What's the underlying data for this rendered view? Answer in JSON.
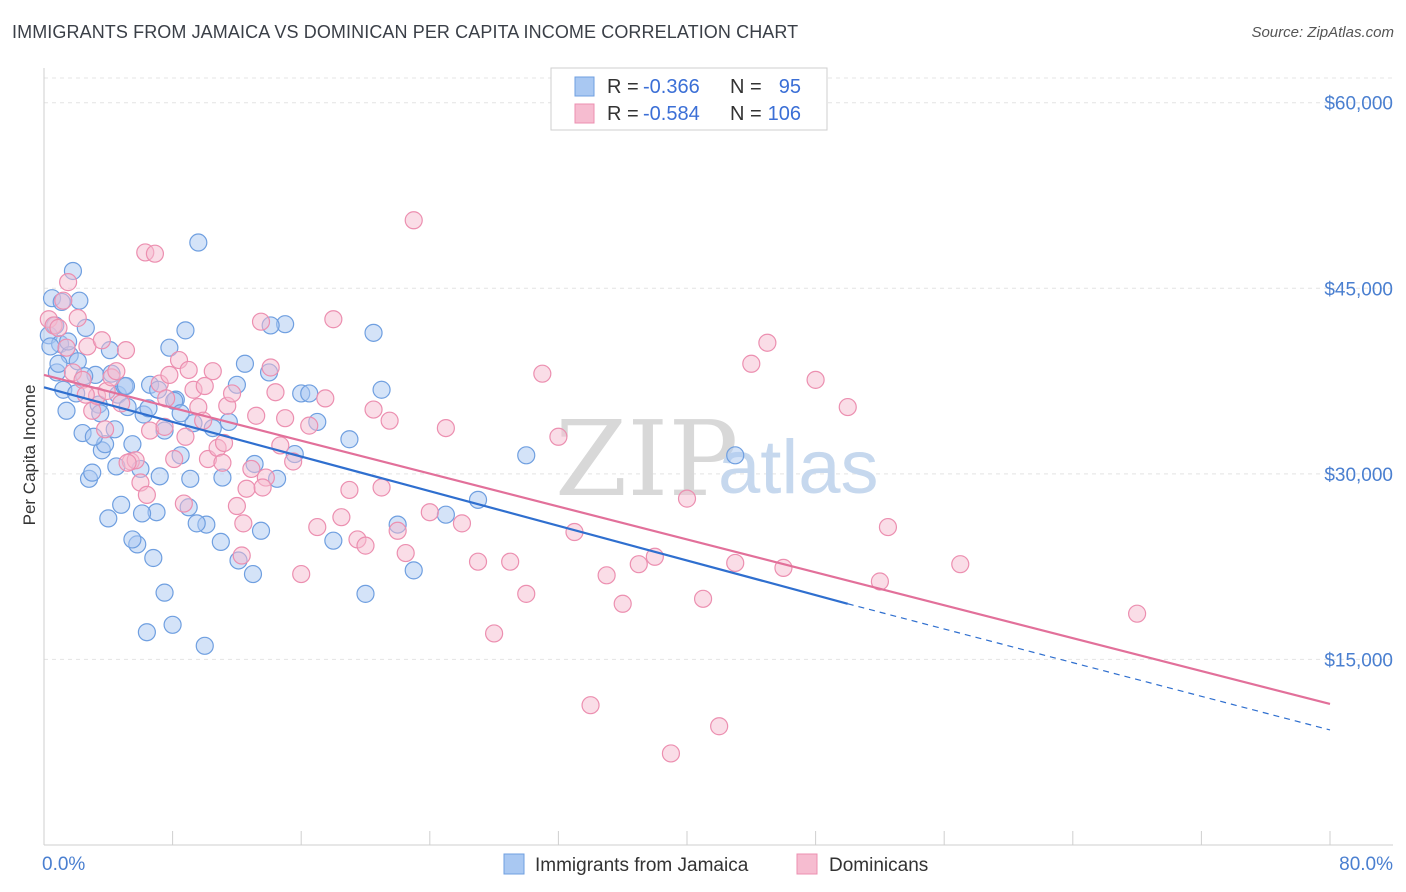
{
  "title": "IMMIGRANTS FROM JAMAICA VS DOMINICAN PER CAPITA INCOME CORRELATION CHART",
  "source": "Source: ZipAtlas.com",
  "watermark": {
    "zip": "ZIP",
    "atlas": "atlas"
  },
  "colors": {
    "blue_fill": "#a9c8f2",
    "blue_stroke": "#6f9fe0",
    "blue_line": "#2f6fcf",
    "pink_fill": "#f6bcd0",
    "pink_stroke": "#ec8fb0",
    "pink_line": "#e2709a",
    "grid": "#e4e4e4",
    "axis_text": "#4a7fd0"
  },
  "stats_box": {
    "rows": [
      {
        "r_label": "R =",
        "r_value": "-0.366",
        "n_label": "N =",
        "n_value": "95"
      },
      {
        "r_label": "R =",
        "r_value": "-0.584",
        "n_label": "N =",
        "n_value": "106"
      }
    ]
  },
  "legend": {
    "items": [
      "Immigrants from Jamaica",
      "Dominicans"
    ]
  },
  "chart_data": {
    "type": "scatter",
    "title": "IMMIGRANTS FROM JAMAICA VS DOMINICAN PER CAPITA INCOME CORRELATION CHART",
    "xlabel": "",
    "ylabel": "Per Capita Income",
    "xlim": [
      0,
      80
    ],
    "ylim": [
      0,
      62000
    ],
    "x_tick_labels": [
      "0.0%",
      "80.0%"
    ],
    "y_ticks": [
      15000,
      30000,
      45000,
      60000
    ],
    "y_tick_labels": [
      "$15,000",
      "$30,000",
      "$45,000",
      "$60,000"
    ],
    "grid": true,
    "legend_position": "bottom-center",
    "series": [
      {
        "name": "Immigrants from Jamaica",
        "r": -0.366,
        "n": 95,
        "trend": {
          "x0": 0,
          "y0": 37000,
          "x1": 50,
          "y1": 19500,
          "dash_to_x": 80,
          "dash_to_y": 9300
        },
        "points": [
          [
            0.3,
            41200
          ],
          [
            0.5,
            44200
          ],
          [
            0.7,
            42000
          ],
          [
            0.8,
            38200
          ],
          [
            1.0,
            40500
          ],
          [
            1.2,
            36800
          ],
          [
            1.4,
            35100
          ],
          [
            1.6,
            39600
          ],
          [
            1.8,
            46400
          ],
          [
            2.0,
            36500
          ],
          [
            2.2,
            44000
          ],
          [
            2.4,
            33300
          ],
          [
            2.6,
            41800
          ],
          [
            2.8,
            29600
          ],
          [
            3.0,
            30100
          ],
          [
            3.2,
            38000
          ],
          [
            3.4,
            35600
          ],
          [
            3.6,
            31900
          ],
          [
            3.8,
            32400
          ],
          [
            4.0,
            26400
          ],
          [
            4.2,
            38100
          ],
          [
            4.4,
            33600
          ],
          [
            4.6,
            36400
          ],
          [
            4.8,
            27500
          ],
          [
            5.0,
            37100
          ],
          [
            5.2,
            35400
          ],
          [
            5.5,
            32400
          ],
          [
            5.8,
            24300
          ],
          [
            6.0,
            30400
          ],
          [
            6.2,
            34800
          ],
          [
            6.4,
            17200
          ],
          [
            6.6,
            37200
          ],
          [
            6.8,
            23200
          ],
          [
            7.0,
            26900
          ],
          [
            7.2,
            29800
          ],
          [
            7.5,
            33500
          ],
          [
            7.8,
            40200
          ],
          [
            8.0,
            17800
          ],
          [
            8.2,
            36000
          ],
          [
            8.5,
            31500
          ],
          [
            8.8,
            41600
          ],
          [
            9.0,
            27300
          ],
          [
            9.3,
            34100
          ],
          [
            9.6,
            48700
          ],
          [
            10.0,
            16100
          ],
          [
            10.5,
            33700
          ],
          [
            11.0,
            24500
          ],
          [
            11.5,
            34200
          ],
          [
            12.0,
            37200
          ],
          [
            12.5,
            38900
          ],
          [
            13.0,
            21900
          ],
          [
            13.5,
            25400
          ],
          [
            14.0,
            38200
          ],
          [
            14.5,
            29600
          ],
          [
            15.0,
            42100
          ],
          [
            15.6,
            31600
          ],
          [
            16.0,
            36500
          ],
          [
            16.5,
            36500
          ],
          [
            17.0,
            34200
          ],
          [
            18.0,
            24600
          ],
          [
            19.0,
            32800
          ],
          [
            20.0,
            20300
          ],
          [
            20.5,
            41400
          ],
          [
            21.0,
            36800
          ],
          [
            22.0,
            25900
          ],
          [
            23.0,
            22200
          ],
          [
            25.0,
            26700
          ],
          [
            27.0,
            27900
          ],
          [
            30.0,
            31500
          ],
          [
            43.0,
            31500
          ],
          [
            1.1,
            43900
          ],
          [
            2.1,
            39100
          ],
          [
            3.1,
            33000
          ],
          [
            4.1,
            40000
          ],
          [
            5.1,
            37100
          ],
          [
            6.1,
            26800
          ],
          [
            7.1,
            36800
          ],
          [
            8.1,
            35900
          ],
          [
            9.1,
            29600
          ],
          [
            10.1,
            25900
          ],
          [
            11.1,
            29700
          ],
          [
            12.1,
            23000
          ],
          [
            13.1,
            30800
          ],
          [
            14.1,
            42000
          ],
          [
            2.5,
            37900
          ],
          [
            3.5,
            34900
          ],
          [
            4.5,
            30600
          ],
          [
            5.5,
            24700
          ],
          [
            6.5,
            35300
          ],
          [
            7.5,
            20400
          ],
          [
            8.5,
            34900
          ],
          [
            9.5,
            26000
          ],
          [
            1.5,
            40700
          ],
          [
            0.9,
            38900
          ],
          [
            0.4,
            40300
          ]
        ]
      },
      {
        "name": "Dominicans",
        "r": -0.584,
        "n": 106,
        "trend": {
          "x0": 0,
          "y0": 38000,
          "x1": 80,
          "y1": 11400
        },
        "points": [
          [
            0.3,
            42500
          ],
          [
            0.6,
            42000
          ],
          [
            0.9,
            41800
          ],
          [
            1.2,
            44000
          ],
          [
            1.5,
            45500
          ],
          [
            1.8,
            38200
          ],
          [
            2.1,
            42600
          ],
          [
            2.4,
            37600
          ],
          [
            2.7,
            40300
          ],
          [
            3.0,
            35100
          ],
          [
            3.3,
            36300
          ],
          [
            3.6,
            40800
          ],
          [
            3.9,
            36700
          ],
          [
            4.2,
            37800
          ],
          [
            4.5,
            38300
          ],
          [
            4.8,
            35700
          ],
          [
            5.1,
            40000
          ],
          [
            5.4,
            31000
          ],
          [
            5.7,
            31100
          ],
          [
            6.0,
            29300
          ],
          [
            6.3,
            47900
          ],
          [
            6.6,
            33500
          ],
          [
            6.9,
            47800
          ],
          [
            7.2,
            37300
          ],
          [
            7.5,
            33800
          ],
          [
            7.8,
            38000
          ],
          [
            8.1,
            31200
          ],
          [
            8.4,
            39200
          ],
          [
            8.7,
            27600
          ],
          [
            9.0,
            38400
          ],
          [
            9.3,
            36800
          ],
          [
            9.6,
            35400
          ],
          [
            9.9,
            34300
          ],
          [
            10.2,
            31200
          ],
          [
            10.5,
            38300
          ],
          [
            10.8,
            32100
          ],
          [
            11.1,
            30900
          ],
          [
            11.4,
            35500
          ],
          [
            11.7,
            36500
          ],
          [
            12.0,
            27400
          ],
          [
            12.3,
            23400
          ],
          [
            12.6,
            28800
          ],
          [
            12.9,
            30400
          ],
          [
            13.2,
            34700
          ],
          [
            13.5,
            42300
          ],
          [
            13.8,
            29700
          ],
          [
            14.1,
            38600
          ],
          [
            14.4,
            36600
          ],
          [
            14.7,
            32300
          ],
          [
            15.0,
            34500
          ],
          [
            15.5,
            31000
          ],
          [
            16.0,
            21900
          ],
          [
            16.5,
            33900
          ],
          [
            17.0,
            25700
          ],
          [
            17.5,
            36100
          ],
          [
            18.0,
            42500
          ],
          [
            18.5,
            26500
          ],
          [
            19.0,
            28700
          ],
          [
            19.5,
            24700
          ],
          [
            20.0,
            24200
          ],
          [
            20.5,
            35200
          ],
          [
            21.0,
            28900
          ],
          [
            21.5,
            34300
          ],
          [
            22.0,
            25400
          ],
          [
            22.5,
            23600
          ],
          [
            23.0,
            50500
          ],
          [
            24.0,
            26900
          ],
          [
            25.0,
            33700
          ],
          [
            26.0,
            26000
          ],
          [
            27.0,
            22900
          ],
          [
            28.0,
            17100
          ],
          [
            29.0,
            22900
          ],
          [
            30.0,
            20300
          ],
          [
            31.0,
            38100
          ],
          [
            32.0,
            33000
          ],
          [
            33.0,
            25300
          ],
          [
            34.0,
            11300
          ],
          [
            35.0,
            21800
          ],
          [
            36.0,
            19500
          ],
          [
            37.0,
            22700
          ],
          [
            38.0,
            23300
          ],
          [
            39.0,
            7400
          ],
          [
            40.0,
            28000
          ],
          [
            41.0,
            19900
          ],
          [
            42.0,
            9600
          ],
          [
            43.0,
            22800
          ],
          [
            44.0,
            38900
          ],
          [
            45.0,
            40600
          ],
          [
            46.0,
            22400
          ],
          [
            48.0,
            37600
          ],
          [
            50.0,
            35400
          ],
          [
            52.0,
            21300
          ],
          [
            52.5,
            25700
          ],
          [
            57.0,
            22700
          ],
          [
            68.0,
            18700
          ],
          [
            1.4,
            40200
          ],
          [
            2.6,
            36400
          ],
          [
            3.8,
            33600
          ],
          [
            5.2,
            30900
          ],
          [
            6.4,
            28300
          ],
          [
            7.6,
            36100
          ],
          [
            8.8,
            33000
          ],
          [
            10.0,
            37100
          ],
          [
            11.2,
            32500
          ],
          [
            12.4,
            26000
          ],
          [
            13.6,
            28900
          ]
        ]
      }
    ]
  }
}
